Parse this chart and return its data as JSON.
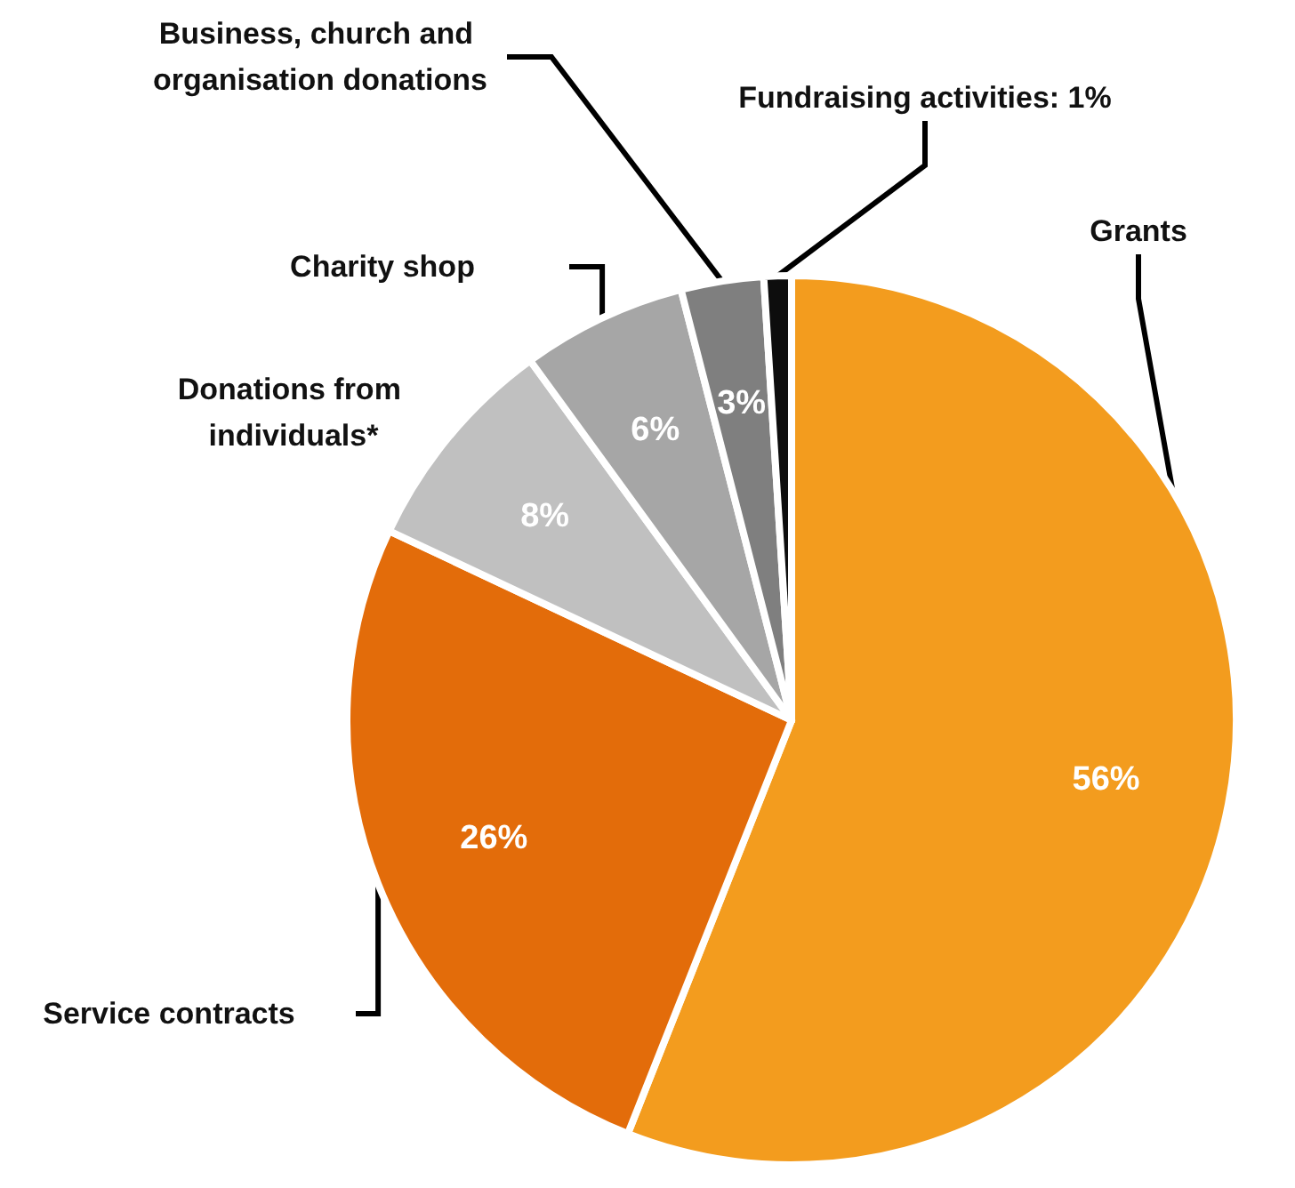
{
  "chart_data": {
    "type": "pie",
    "categories": [
      "Grants",
      "Service contracts",
      "Donations from individuals*",
      "Charity shop",
      "Business, church and organisation donations",
      "Fundraising activities: 1%"
    ],
    "values": [
      56,
      26,
      8,
      6,
      3,
      1
    ],
    "colors": [
      "#f39c1e",
      "#e36c0a",
      "#c0c0c0",
      "#a6a6a6",
      "#7f7f7f",
      "#0d0d0d"
    ],
    "value_labels": [
      "56%",
      "26%",
      "8%",
      "6%",
      "3%",
      null
    ]
  }
}
